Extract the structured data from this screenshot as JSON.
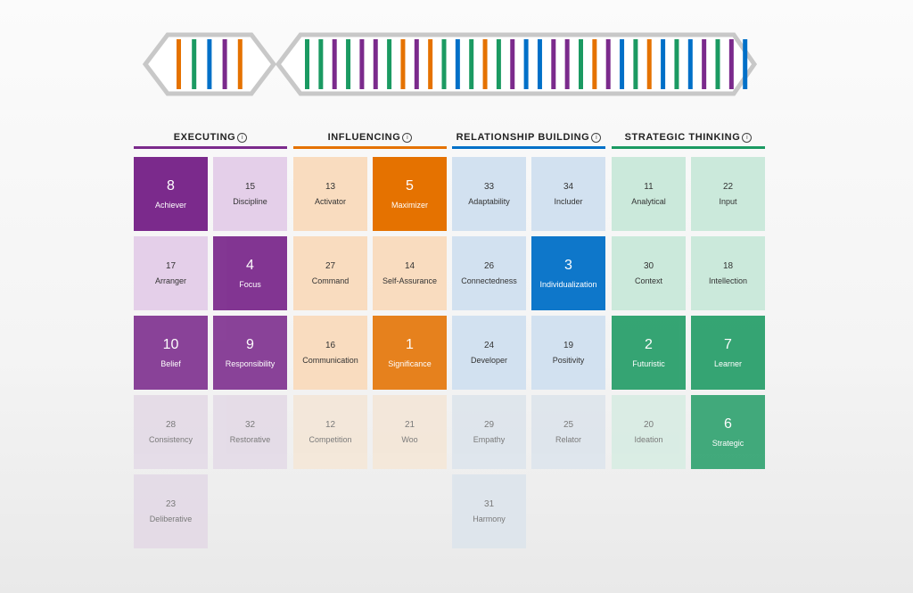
{
  "dna": {
    "left_bars": [
      "orange",
      "green",
      "blue",
      "purple",
      "orange"
    ],
    "right_bars": [
      "green",
      "green",
      "purple",
      "green",
      "purple",
      "purple",
      "green",
      "orange",
      "purple",
      "orange",
      "green",
      "blue",
      "green",
      "orange",
      "green",
      "purple",
      "blue",
      "blue",
      "purple",
      "purple",
      "green",
      "orange",
      "purple",
      "blue",
      "green",
      "orange",
      "blue",
      "green",
      "blue",
      "purple",
      "green",
      "purple",
      "blue"
    ]
  },
  "colors": {
    "purple": "#7b2a8c",
    "orange": "#e57200",
    "blue": "#0070c8",
    "green": "#1b9a62",
    "executing": {
      "top": "#7b2a8c",
      "mid": "#e4cfe9",
      "low": "#e3d9e6"
    },
    "influencing": {
      "top": "#e57200",
      "mid": "#f9dcbf",
      "low": "#f4e6d6"
    },
    "relationship": {
      "top": "#0070c8",
      "mid": "#d2e1f0",
      "low": "#dce4ec"
    },
    "strategic": {
      "top": "#1b9a62",
      "mid": "#cbe9db",
      "low": "#d6ece2"
    }
  },
  "domains": [
    {
      "key": "executing",
      "title": "EXECUTING",
      "info_icon": "i",
      "columns": [
        [
          {
            "rank": "8",
            "name": "Achiever",
            "top": true
          },
          {
            "rank": "17",
            "name": "Arranger",
            "top": false
          },
          {
            "rank": "10",
            "name": "Belief",
            "top": true
          },
          {
            "rank": "28",
            "name": "Consistency",
            "top": false
          },
          {
            "rank": "23",
            "name": "Deliberative",
            "top": false
          }
        ],
        [
          {
            "rank": "15",
            "name": "Discipline",
            "top": false
          },
          {
            "rank": "4",
            "name": "Focus",
            "top": true
          },
          {
            "rank": "9",
            "name": "Responsibility",
            "top": true
          },
          {
            "rank": "32",
            "name": "Restorative",
            "top": false
          }
        ]
      ]
    },
    {
      "key": "influencing",
      "title": "INFLUENCING",
      "info_icon": "i",
      "columns": [
        [
          {
            "rank": "13",
            "name": "Activator",
            "top": false
          },
          {
            "rank": "27",
            "name": "Command",
            "top": false
          },
          {
            "rank": "16",
            "name": "Communication",
            "top": false
          },
          {
            "rank": "12",
            "name": "Competition",
            "top": false
          }
        ],
        [
          {
            "rank": "5",
            "name": "Maximizer",
            "top": true
          },
          {
            "rank": "14",
            "name": "Self-Assurance",
            "top": false
          },
          {
            "rank": "1",
            "name": "Significance",
            "top": true
          },
          {
            "rank": "21",
            "name": "Woo",
            "top": false
          }
        ]
      ]
    },
    {
      "key": "relationship",
      "title": "RELATIONSHIP BUILDING",
      "info_icon": "i",
      "columns": [
        [
          {
            "rank": "33",
            "name": "Adaptability",
            "top": false
          },
          {
            "rank": "26",
            "name": "Connectedness",
            "top": false
          },
          {
            "rank": "24",
            "name": "Developer",
            "top": false
          },
          {
            "rank": "29",
            "name": "Empathy",
            "top": false
          },
          {
            "rank": "31",
            "name": "Harmony",
            "top": false
          }
        ],
        [
          {
            "rank": "34",
            "name": "Includer",
            "top": false
          },
          {
            "rank": "3",
            "name": "Individualization",
            "top": true
          },
          {
            "rank": "19",
            "name": "Positivity",
            "top": false
          },
          {
            "rank": "25",
            "name": "Relator",
            "top": false
          }
        ]
      ]
    },
    {
      "key": "strategic",
      "title": "STRATEGIC THINKING",
      "info_icon": "i",
      "columns": [
        [
          {
            "rank": "11",
            "name": "Analytical",
            "top": false
          },
          {
            "rank": "30",
            "name": "Context",
            "top": false
          },
          {
            "rank": "2",
            "name": "Futuristic",
            "top": true
          },
          {
            "rank": "20",
            "name": "Ideation",
            "top": false
          }
        ],
        [
          {
            "rank": "22",
            "name": "Input",
            "top": false
          },
          {
            "rank": "18",
            "name": "Intellection",
            "top": false
          },
          {
            "rank": "7",
            "name": "Learner",
            "top": true
          },
          {
            "rank": "6",
            "name": "Strategic",
            "top": true
          }
        ]
      ]
    }
  ]
}
